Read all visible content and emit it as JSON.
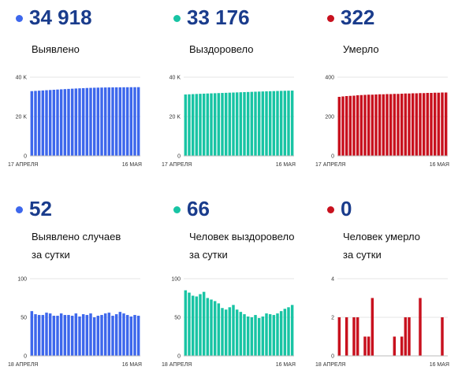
{
  "colors": {
    "blue": "#3d67ec",
    "teal": "#18c4a4",
    "red": "#c8111e",
    "value_text": "#1a3c8c"
  },
  "panels": [
    {
      "value": "34 918",
      "label_lines": [
        "Выявлено"
      ],
      "color": "#3d67ec",
      "chart_data": {
        "type": "bar",
        "ylim": [
          0,
          40000
        ],
        "yticks": [
          0,
          20000,
          40000
        ],
        "ytick_labels": [
          "0",
          "20 K",
          "40 K"
        ],
        "x_start_label": "17 АПРЕЛЯ",
        "x_end_label": "16 МАЯ",
        "values": [
          32900,
          33020,
          33140,
          33250,
          33370,
          33480,
          33600,
          33710,
          33820,
          33930,
          34040,
          34140,
          34240,
          34330,
          34420,
          34500,
          34570,
          34630,
          34680,
          34720,
          34760,
          34790,
          34810,
          34830,
          34850,
          34865,
          34880,
          34895,
          34905,
          34918
        ]
      }
    },
    {
      "value": "33 176",
      "label_lines": [
        "Выздоровело"
      ],
      "color": "#18c4a4",
      "chart_data": {
        "type": "bar",
        "ylim": [
          0,
          40000
        ],
        "yticks": [
          0,
          20000,
          40000
        ],
        "ytick_labels": [
          "0",
          "20 K",
          "40 K"
        ],
        "x_start_label": "17 АПРЕЛЯ",
        "x_end_label": "16 МАЯ",
        "values": [
          31200,
          31290,
          31380,
          31460,
          31540,
          31620,
          31700,
          31770,
          31840,
          31910,
          31980,
          32050,
          32120,
          32190,
          32260,
          32330,
          32400,
          32470,
          32540,
          32610,
          32680,
          32740,
          32800,
          32860,
          32920,
          32980,
          33030,
          33080,
          33130,
          33176
        ]
      }
    },
    {
      "value": "322",
      "label_lines": [
        "Умерло"
      ],
      "color": "#c8111e",
      "chart_data": {
        "type": "bar",
        "ylim": [
          0,
          400
        ],
        "yticks": [
          0,
          200,
          400
        ],
        "ytick_labels": [
          "0",
          "200",
          "400"
        ],
        "x_start_label": "17 АПРЕЛЯ",
        "x_end_label": "16 МАЯ",
        "values": [
          300,
          302,
          304,
          305,
          306,
          308,
          309,
          310,
          311,
          311,
          312,
          313,
          313,
          314,
          314,
          315,
          315,
          316,
          317,
          317,
          318,
          318,
          319,
          319,
          320,
          320,
          321,
          321,
          322,
          322
        ]
      }
    },
    {
      "value": "52",
      "label_lines": [
        "Выявлено случаев",
        "за сутки"
      ],
      "color": "#3d67ec",
      "chart_data": {
        "type": "bar",
        "ylim": [
          0,
          100
        ],
        "yticks": [
          0,
          50,
          100
        ],
        "ytick_labels": [
          "0",
          "50",
          "100"
        ],
        "x_start_label": "18 АПРЕЛЯ",
        "x_end_label": "16 МАЯ",
        "values": [
          58,
          54,
          53,
          53,
          56,
          55,
          52,
          52,
          55,
          53,
          53,
          52,
          55,
          51,
          54,
          53,
          55,
          50,
          52,
          53,
          55,
          56,
          52,
          54,
          57,
          55,
          53,
          51,
          53,
          52
        ]
      }
    },
    {
      "value": "66",
      "label_lines": [
        "Человек выздоровело",
        "за сутки"
      ],
      "color": "#18c4a4",
      "chart_data": {
        "type": "bar",
        "ylim": [
          0,
          100
        ],
        "yticks": [
          0,
          50,
          100
        ],
        "ytick_labels": [
          "0",
          "50",
          "100"
        ],
        "x_start_label": "18 АПРЕЛЯ",
        "x_end_label": "16 МАЯ",
        "values": [
          85,
          82,
          78,
          77,
          80,
          83,
          75,
          73,
          71,
          68,
          62,
          60,
          63,
          66,
          60,
          57,
          54,
          51,
          50,
          53,
          49,
          51,
          55,
          54,
          53,
          55,
          58,
          61,
          63,
          66
        ]
      }
    },
    {
      "value": "0",
      "label_lines": [
        "Человек умерло",
        "за сутки"
      ],
      "color": "#c8111e",
      "chart_data": {
        "type": "bar",
        "ylim": [
          0,
          4
        ],
        "yticks": [
          0,
          2,
          4
        ],
        "ytick_labels": [
          "0",
          "2",
          "4"
        ],
        "x_start_label": "18 АПРЕЛЯ",
        "x_end_label": "16 МАЯ",
        "values": [
          2,
          0,
          2,
          0,
          2,
          2,
          0,
          1,
          1,
          3,
          0,
          0,
          0,
          0,
          0,
          1,
          0,
          1,
          2,
          2,
          0,
          0,
          3,
          0,
          0,
          0,
          0,
          0,
          2,
          0
        ]
      }
    }
  ]
}
